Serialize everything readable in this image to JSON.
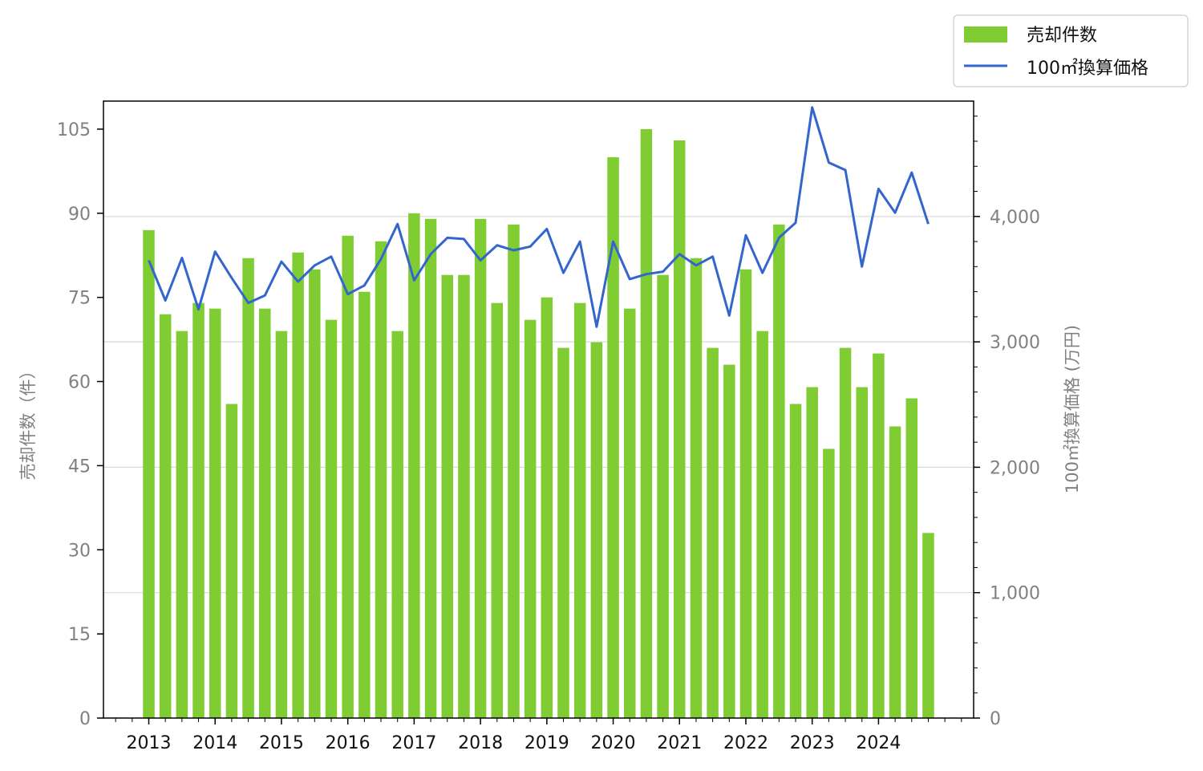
{
  "chart_data": {
    "type": "bar",
    "x_ticks": [
      "2013",
      "2014",
      "2015",
      "2016",
      "2017",
      "2018",
      "2019",
      "2020",
      "2021",
      "2022",
      "2023",
      "2024"
    ],
    "y_left": {
      "label": "売却件数（件）",
      "ylim": [
        0,
        110
      ],
      "ticks": [
        "0",
        "15",
        "30",
        "45",
        "60",
        "75",
        "90",
        "105"
      ]
    },
    "y_right": {
      "label": "100㎡換算価格 (万円)",
      "ylim": [
        0,
        4920
      ],
      "ticks": [
        "0",
        "1,000",
        "2,000",
        "3,000",
        "4,000"
      ]
    },
    "grid": "horizontal (right axis)",
    "legend_position": "top-right",
    "series": [
      {
        "name": "売却件数",
        "type": "bar",
        "axis": "left",
        "color": "#80cc33",
        "values": [
          87,
          72,
          69,
          74,
          73,
          56,
          82,
          73,
          69,
          83,
          80,
          71,
          86,
          76,
          85,
          69,
          90,
          89,
          79,
          79,
          89,
          74,
          88,
          71,
          75,
          66,
          74,
          67,
          100,
          73,
          105,
          79,
          103,
          82,
          66,
          63,
          80,
          69,
          88,
          56,
          59,
          48,
          66,
          59,
          65,
          52,
          57,
          33
        ]
      },
      {
        "name": "100㎡換算価格",
        "type": "line",
        "axis": "right",
        "color": "#3366cc",
        "values": [
          3650,
          3330,
          3670,
          3260,
          3720,
          3510,
          3310,
          3370,
          3640,
          3480,
          3610,
          3680,
          3380,
          3450,
          3660,
          3940,
          3490,
          3700,
          3830,
          3820,
          3650,
          3770,
          3730,
          3760,
          3900,
          3550,
          3800,
          3120,
          3800,
          3500,
          3540,
          3560,
          3700,
          3610,
          3680,
          3210,
          3850,
          3550,
          3830,
          3950,
          4870,
          4430,
          4370,
          3600,
          4220,
          4030,
          4350,
          3940
        ]
      }
    ]
  }
}
